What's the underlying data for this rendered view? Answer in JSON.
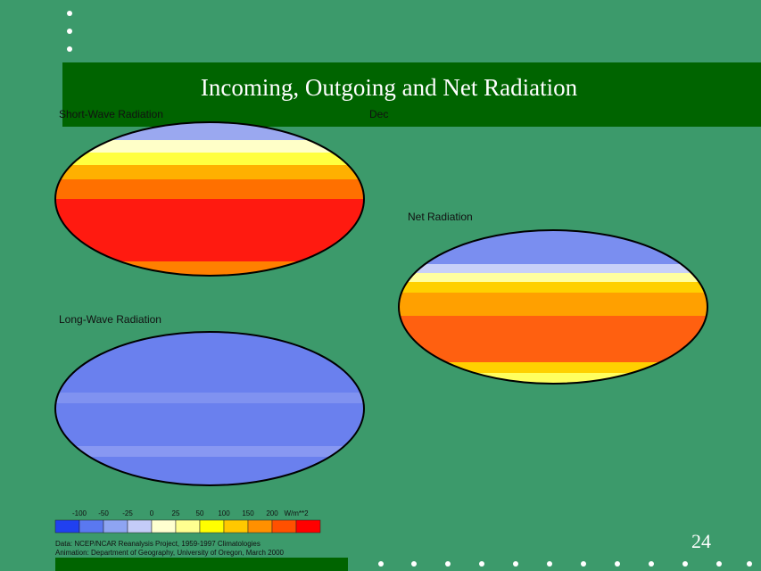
{
  "slide": {
    "title": "Incoming, Outgoing and Net Radiation",
    "maps": {
      "short_wave": "Short-Wave Radiation",
      "month": "Dec",
      "net": "Net Radiation",
      "long_wave": "Long-Wave Radiation"
    },
    "scale_labels": [
      "-100",
      "-50",
      "-25",
      "0",
      "25",
      "50",
      "100",
      "150",
      "200",
      "W/m**2"
    ],
    "footer": [
      "Data: NCEP/NCAR Reanalysis Project, 1959-1997 Climatologies",
      "Animation: Department of Geography, University of Oregon, March 2000"
    ],
    "page_number": "24"
  }
}
